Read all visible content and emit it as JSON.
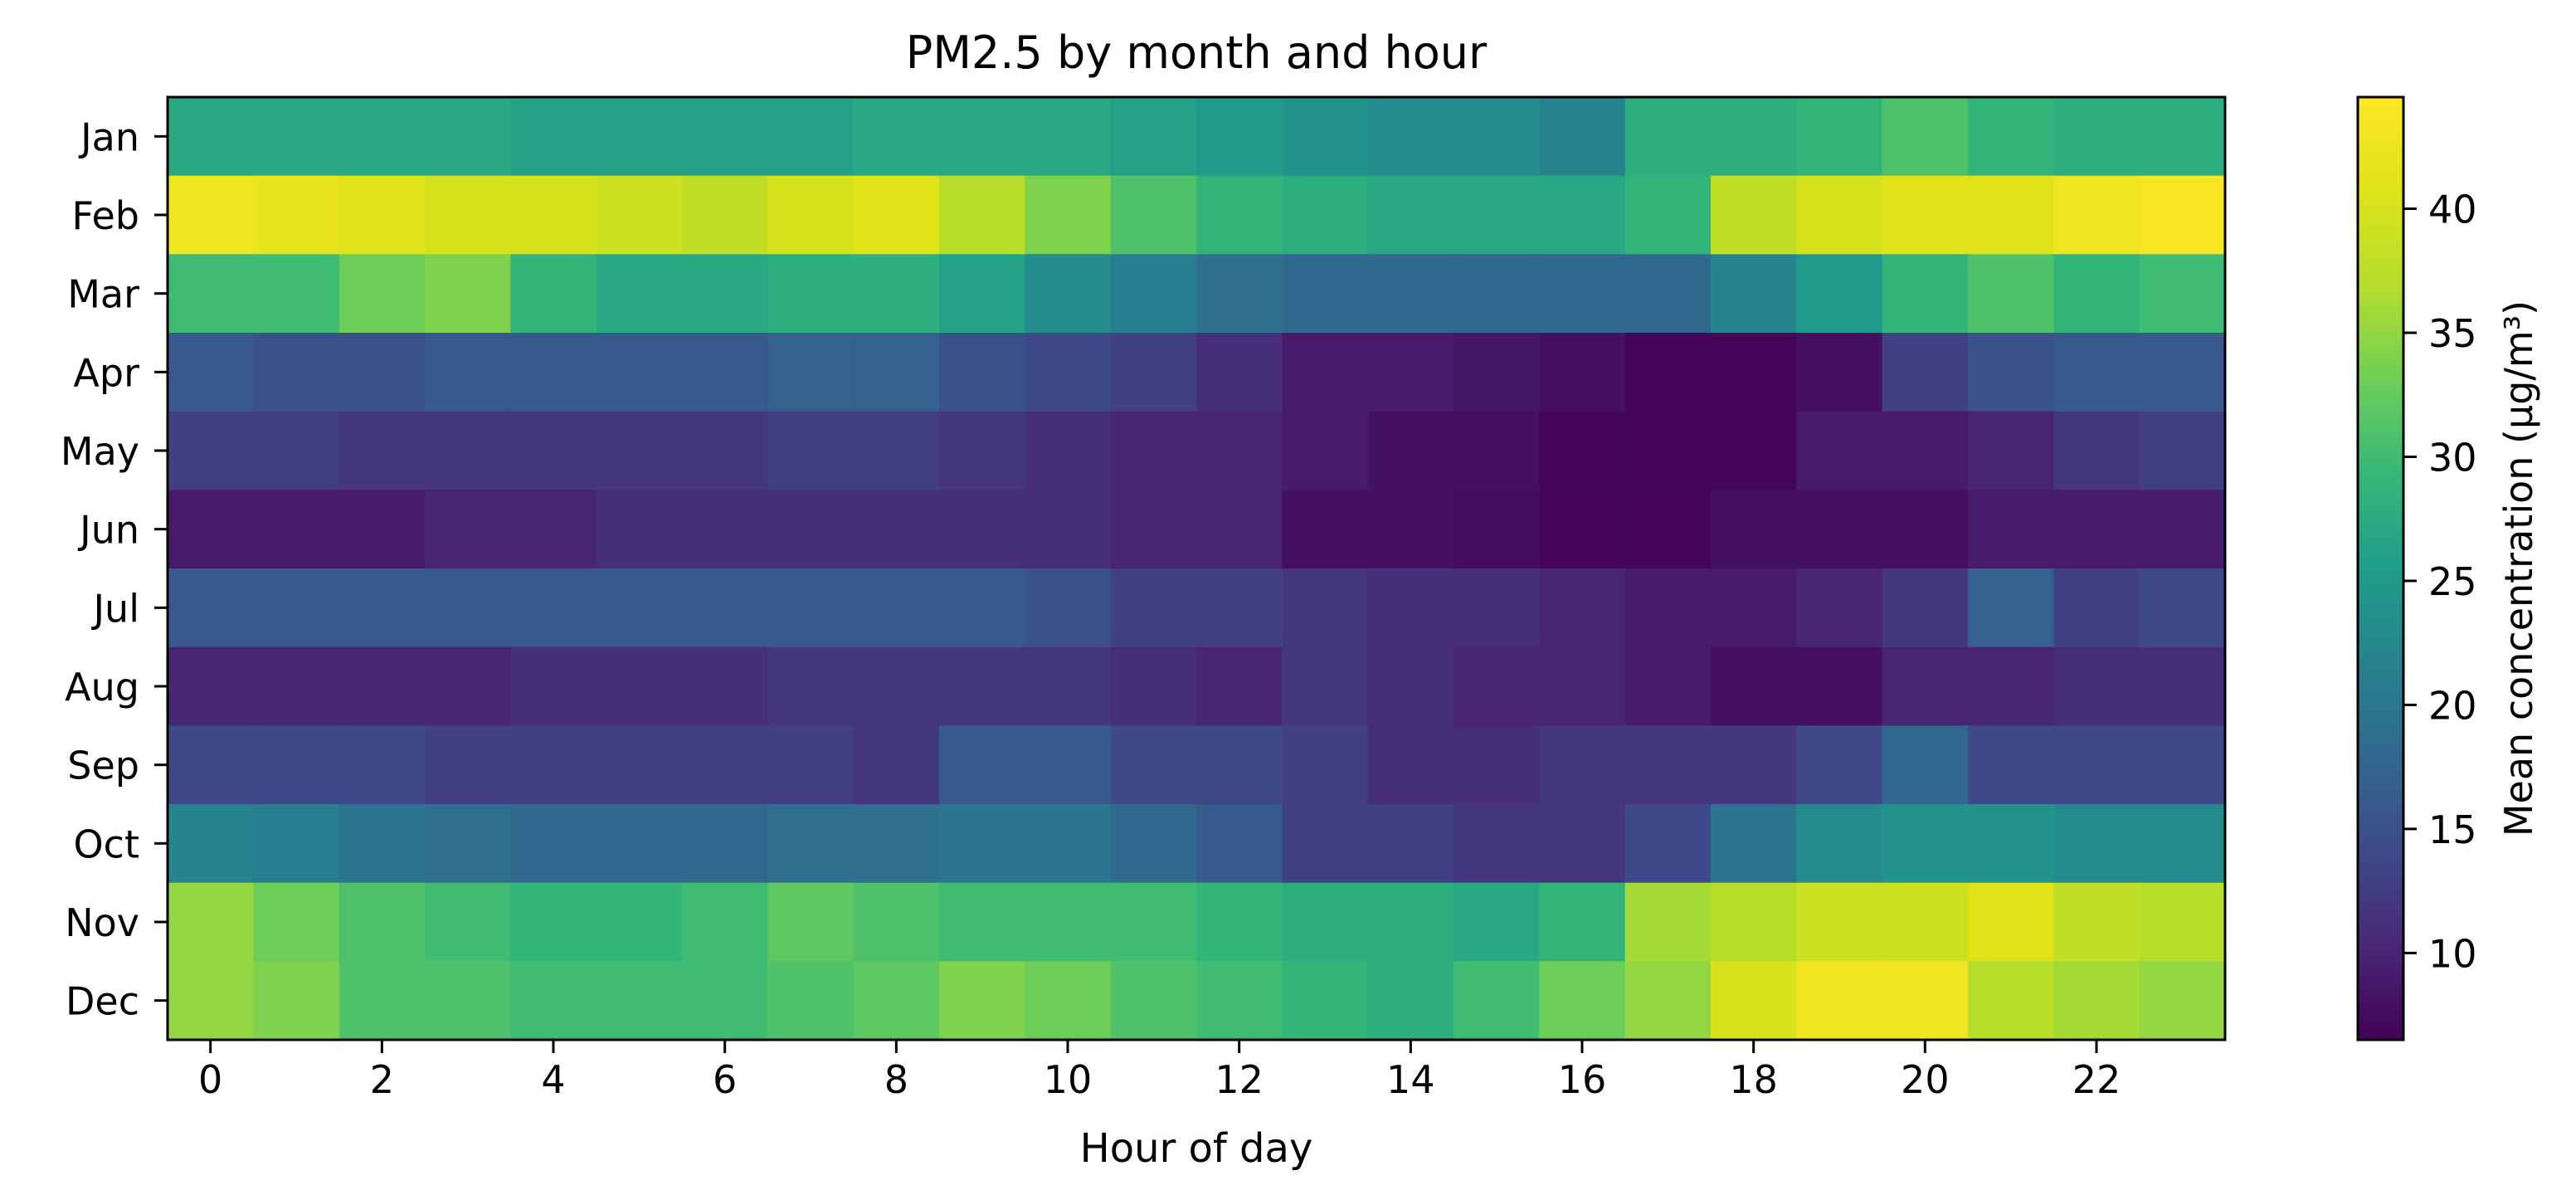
{
  "chart_data": {
    "type": "heatmap",
    "title": "PM2.5 by month and hour",
    "xlabel": "Hour of day",
    "ylabel": "",
    "x": [
      0,
      1,
      2,
      3,
      4,
      5,
      6,
      7,
      8,
      9,
      10,
      11,
      12,
      13,
      14,
      15,
      16,
      17,
      18,
      19,
      20,
      21,
      22,
      23
    ],
    "x_tick_labels": [
      "0",
      "2",
      "4",
      "6",
      "8",
      "10",
      "12",
      "14",
      "16",
      "18",
      "20",
      "22"
    ],
    "x_tick_values": [
      0,
      2,
      4,
      6,
      8,
      10,
      12,
      14,
      16,
      18,
      20,
      22
    ],
    "y": [
      "Jan",
      "Feb",
      "Mar",
      "Apr",
      "May",
      "Jun",
      "Jul",
      "Aug",
      "Sep",
      "Oct",
      "Nov",
      "Dec"
    ],
    "values": [
      [
        27,
        27,
        27,
        27,
        26,
        26,
        26,
        26,
        27,
        27,
        27,
        26,
        25,
        24,
        23,
        23,
        22,
        28,
        28,
        29,
        31,
        29,
        28,
        28
      ],
      [
        43,
        42,
        41,
        40,
        40,
        39,
        38,
        40,
        41,
        37,
        34,
        31,
        29,
        28,
        27,
        27,
        27,
        29,
        38,
        40,
        41,
        41,
        43,
        44
      ],
      [
        30,
        30,
        33,
        34,
        29,
        27,
        27,
        28,
        28,
        26,
        23,
        21,
        19,
        18,
        18,
        18,
        18,
        18,
        22,
        25,
        29,
        31,
        29,
        30
      ],
      [
        16,
        15,
        15,
        16,
        16,
        16,
        16,
        17,
        17,
        15,
        14,
        13,
        11,
        9,
        9,
        8.5,
        8,
        7,
        7,
        8,
        13,
        15,
        16,
        16
      ],
      [
        13,
        13,
        12,
        12,
        12,
        12,
        12,
        13,
        13,
        12,
        11,
        10,
        10,
        9,
        8,
        8,
        7,
        7,
        7,
        9,
        9,
        10,
        12,
        13
      ],
      [
        9,
        9,
        9,
        10,
        10,
        11,
        11,
        11,
        11,
        11,
        11,
        10,
        10,
        8,
        8,
        7.5,
        7,
        7,
        8,
        8,
        8,
        9,
        9,
        9
      ],
      [
        16,
        16,
        16,
        16,
        16,
        16,
        16,
        16,
        16,
        16,
        15,
        13,
        13,
        12,
        11,
        11,
        10,
        9,
        9,
        10,
        12,
        17,
        13,
        14
      ],
      [
        10,
        10,
        10,
        10,
        11,
        11,
        11,
        12,
        12,
        12,
        12,
        11,
        10,
        12,
        11,
        10,
        10,
        9,
        8,
        8,
        10,
        10,
        11,
        11
      ],
      [
        14,
        14,
        14,
        13,
        13,
        13,
        13,
        13,
        12,
        16,
        16,
        14,
        14,
        13,
        11,
        11,
        12,
        12,
        12,
        14,
        18,
        14,
        14,
        14
      ],
      [
        22,
        21,
        20,
        19,
        18,
        18,
        18,
        19,
        19,
        20,
        20,
        18,
        16,
        13,
        13,
        12,
        12,
        14,
        20,
        23,
        24,
        24,
        23,
        23
      ],
      [
        35,
        33,
        31,
        30,
        29,
        29,
        30,
        32,
        31,
        30,
        30,
        30,
        29,
        28,
        28,
        27,
        29,
        36,
        37,
        39,
        39,
        41,
        38,
        37
      ],
      [
        35,
        34,
        31,
        31,
        30,
        30,
        30,
        31,
        32,
        34,
        33,
        31,
        30,
        29,
        28,
        30,
        33,
        35,
        40,
        43,
        43,
        37,
        36,
        35
      ]
    ],
    "colormap": "viridis",
    "vmin": 6.5,
    "vmax": 44.5,
    "colorbar": {
      "label": "Mean concentration (µg/m³)",
      "ticks": [
        10,
        15,
        20,
        25,
        30,
        35,
        40
      ],
      "tick_labels": [
        "10",
        "15",
        "20",
        "25",
        "30",
        "35",
        "40"
      ]
    },
    "grid": false,
    "legend": "none"
  }
}
